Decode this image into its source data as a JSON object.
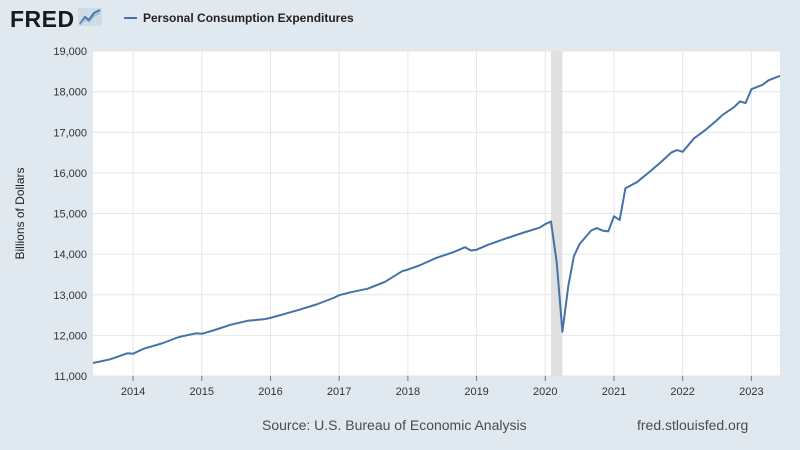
{
  "header": {
    "logo_text": "FRED",
    "logo_icon": "chart-line-icon",
    "legend_label": "Personal Consumption Expenditures",
    "series_color": "#4572a7"
  },
  "footer": {
    "source": "Source: U.S. Bureau of Economic Analysis",
    "site": "fred.stlouisfed.org"
  },
  "colors": {
    "background": "#e1e9f0",
    "plot_background": "#ffffff",
    "grid": "#e6e6e6",
    "recession_shade": "#e0e0e0"
  },
  "chart_data": {
    "type": "line",
    "title": "",
    "xlabel": "",
    "ylabel": "Billions of Dollars",
    "xlim": [
      "2013-06",
      "2023-06"
    ],
    "ylim": [
      11000,
      19000
    ],
    "y_ticks": [
      11000,
      12000,
      13000,
      14000,
      15000,
      16000,
      17000,
      18000,
      19000
    ],
    "y_tick_labels": [
      "11,000",
      "12,000",
      "13,000",
      "14,000",
      "15,000",
      "16,000",
      "17,000",
      "18,000",
      "19,000"
    ],
    "x_ticks": [
      "2014-01",
      "2015-01",
      "2016-01",
      "2017-01",
      "2018-01",
      "2019-01",
      "2020-01",
      "2021-01",
      "2022-01",
      "2023-01"
    ],
    "x_tick_labels": [
      "2014",
      "2015",
      "2016",
      "2017",
      "2018",
      "2019",
      "2020",
      "2021",
      "2022",
      "2023"
    ],
    "grid": true,
    "legend_position": "top-left",
    "recession": {
      "start": "2020-02",
      "end": "2020-04"
    },
    "series": [
      {
        "name": "Personal Consumption Expenditures",
        "color": "#4572a7",
        "points": [
          [
            "2013-06",
            11320
          ],
          [
            "2013-09",
            11410
          ],
          [
            "2013-12",
            11560
          ],
          [
            "2014-01",
            11550
          ],
          [
            "2014-03",
            11680
          ],
          [
            "2014-06",
            11800
          ],
          [
            "2014-09",
            11960
          ],
          [
            "2014-12",
            12050
          ],
          [
            "2015-01",
            12040
          ],
          [
            "2015-03",
            12120
          ],
          [
            "2015-06",
            12260
          ],
          [
            "2015-09",
            12360
          ],
          [
            "2015-12",
            12400
          ],
          [
            "2016-01",
            12430
          ],
          [
            "2016-03",
            12510
          ],
          [
            "2016-06",
            12630
          ],
          [
            "2016-09",
            12760
          ],
          [
            "2016-12",
            12920
          ],
          [
            "2017-01",
            12990
          ],
          [
            "2017-03",
            13060
          ],
          [
            "2017-06",
            13150
          ],
          [
            "2017-09",
            13320
          ],
          [
            "2017-12",
            13580
          ],
          [
            "2018-01",
            13620
          ],
          [
            "2018-03",
            13720
          ],
          [
            "2018-06",
            13910
          ],
          [
            "2018-09",
            14050
          ],
          [
            "2018-11",
            14170
          ],
          [
            "2018-12",
            14090
          ],
          [
            "2019-01",
            14110
          ],
          [
            "2019-03",
            14230
          ],
          [
            "2019-06",
            14380
          ],
          [
            "2019-09",
            14520
          ],
          [
            "2019-12",
            14650
          ],
          [
            "2020-01",
            14740
          ],
          [
            "2020-02",
            14800
          ],
          [
            "2020-03",
            13800
          ],
          [
            "2020-04",
            12090
          ],
          [
            "2020-05",
            13200
          ],
          [
            "2020-06",
            13950
          ],
          [
            "2020-07",
            14250
          ],
          [
            "2020-09",
            14580
          ],
          [
            "2020-10",
            14640
          ],
          [
            "2020-11",
            14580
          ],
          [
            "2020-12",
            14560
          ],
          [
            "2021-01",
            14930
          ],
          [
            "2021-02",
            14840
          ],
          [
            "2021-03",
            15620
          ],
          [
            "2021-05",
            15770
          ],
          [
            "2021-07",
            16000
          ],
          [
            "2021-09",
            16240
          ],
          [
            "2021-11",
            16500
          ],
          [
            "2021-12",
            16560
          ],
          [
            "2022-01",
            16520
          ],
          [
            "2022-03",
            16850
          ],
          [
            "2022-05",
            17060
          ],
          [
            "2022-07",
            17300
          ],
          [
            "2022-08",
            17430
          ],
          [
            "2022-10",
            17620
          ],
          [
            "2022-11",
            17760
          ],
          [
            "2022-12",
            17720
          ],
          [
            "2023-01",
            18060
          ],
          [
            "2023-03",
            18170
          ],
          [
            "2023-04",
            18280
          ],
          [
            "2023-06",
            18390
          ]
        ]
      }
    ]
  }
}
